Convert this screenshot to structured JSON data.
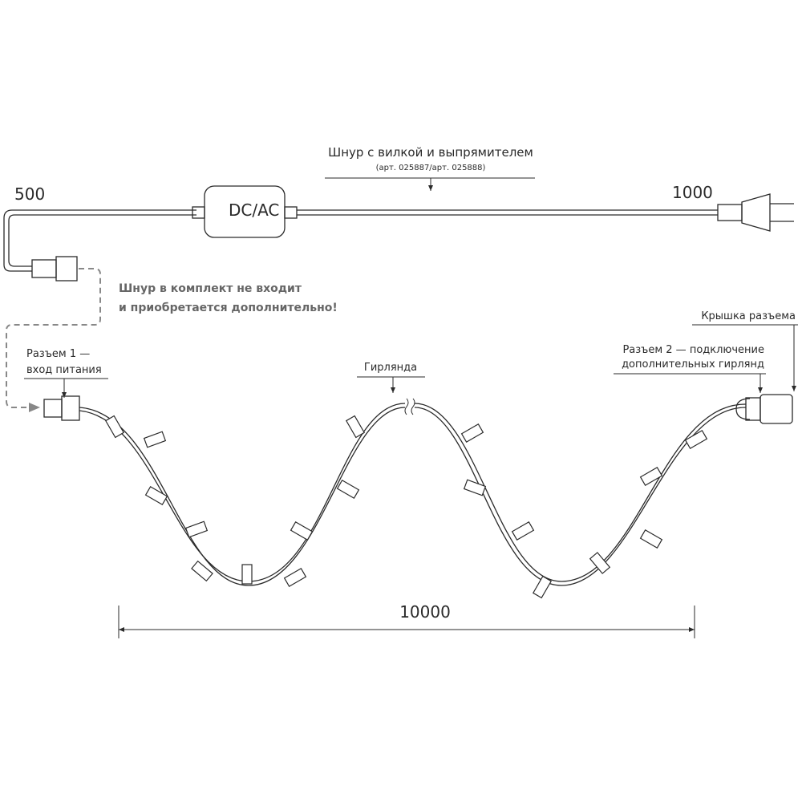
{
  "cord": {
    "title": "Шнур с вилкой и выпрямителем",
    "article": "(арт. 025887/арт. 025888)",
    "box": "DC/AC",
    "left_length": "500",
    "right_length": "1000"
  },
  "note": {
    "lines": [
      "Шнур в комплект не входит",
      "и приобретается дополнительно!"
    ]
  },
  "connector_1": {
    "lines": [
      "Разъем 1 —",
      "вход питания"
    ]
  },
  "garland": {
    "label": "Гирлянда",
    "length": "10000"
  },
  "connector_2": {
    "lines": [
      "Разъем 2 — подключение",
      "дополнительных гирлянд"
    ]
  },
  "cap": {
    "label": "Крышка разъема"
  }
}
